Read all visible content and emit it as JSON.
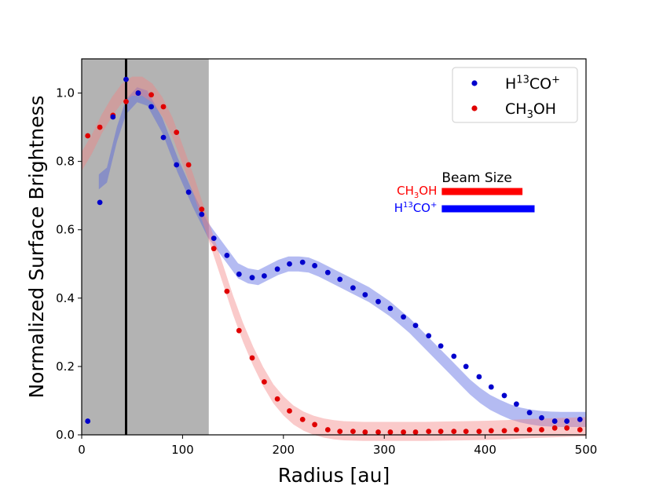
{
  "chart_data": {
    "type": "scatter",
    "title": "",
    "xlabel": "Radius [au]",
    "ylabel": "Normalized Surface Brightness",
    "xlim": [
      0,
      500
    ],
    "ylim": [
      0,
      1.1
    ],
    "xticks": [
      0,
      100,
      200,
      300,
      400,
      500
    ],
    "xtick_labels": [
      "0",
      "100",
      "200",
      "300",
      "400",
      "500"
    ],
    "yticks": [
      0.0,
      0.2,
      0.4,
      0.6,
      0.8,
      1.0
    ],
    "ytick_labels": [
      "0.0",
      "0.2",
      "0.4",
      "0.6",
      "0.8",
      "1.0"
    ],
    "shaded_region": {
      "x_start": 0,
      "x_end": 126,
      "color": "#b3b3b3"
    },
    "vertical_line": {
      "x": 44,
      "color": "#000000"
    },
    "legend": {
      "position": "top-right",
      "entries": [
        {
          "series": "H13CO+",
          "base": "H",
          "sup": "13",
          "mid": "CO",
          "sup2": "+"
        },
        {
          "series": "CH3OH",
          "base": "CH",
          "sub": "3",
          "mid": "OH"
        }
      ]
    },
    "beam": {
      "title": "Beam Size",
      "ch3oh_label": {
        "base": "CH",
        "sub": "3",
        "mid": "OH"
      },
      "h13co_label": {
        "base": "H",
        "sup": "13",
        "mid": "CO",
        "sup2": "+"
      },
      "ch3oh_x": [
        357,
        437
      ],
      "h13co_x": [
        357,
        449
      ],
      "ch3oh_y": 0.705,
      "h13co_y": 0.66
    },
    "series": [
      {
        "name": "H13CO+",
        "color": "#0000cc",
        "band_color": "#4d5ee0",
        "x": [
          6,
          18,
          31,
          44,
          56,
          69,
          81,
          94,
          106,
          119,
          131,
          144,
          156,
          169,
          181,
          194,
          206,
          219,
          231,
          244,
          256,
          269,
          281,
          294,
          306,
          319,
          331,
          344,
          356,
          369,
          381,
          394,
          406,
          419,
          431,
          444,
          456,
          469,
          481,
          494
        ],
        "y": [
          0.04,
          0.68,
          0.93,
          1.04,
          1.0,
          0.96,
          0.87,
          0.79,
          0.71,
          0.645,
          0.575,
          0.525,
          0.47,
          0.46,
          0.465,
          0.485,
          0.5,
          0.505,
          0.495,
          0.475,
          0.455,
          0.43,
          0.41,
          0.39,
          0.37,
          0.345,
          0.32,
          0.29,
          0.26,
          0.23,
          0.2,
          0.17,
          0.14,
          0.115,
          0.09,
          0.065,
          0.05,
          0.04,
          0.04,
          0.045
        ],
        "band_x": [
          17,
          25,
          35,
          44,
          55,
          65,
          80,
          95,
          110,
          125,
          135,
          145,
          155,
          165,
          175,
          185,
          195,
          205,
          215,
          225,
          235,
          245,
          255,
          265,
          275,
          285,
          295,
          305,
          315,
          325,
          335,
          345,
          355,
          365,
          375,
          385,
          395,
          405,
          415,
          425,
          435,
          445,
          455,
          465,
          475,
          485,
          500
        ],
        "band_y": [
          0.74,
          0.76,
          0.88,
          0.96,
          0.995,
          0.985,
          0.905,
          0.79,
          0.69,
          0.6,
          0.56,
          0.52,
          0.48,
          0.465,
          0.46,
          0.475,
          0.49,
          0.5,
          0.5,
          0.497,
          0.485,
          0.47,
          0.455,
          0.44,
          0.425,
          0.41,
          0.39,
          0.37,
          0.345,
          0.32,
          0.29,
          0.26,
          0.23,
          0.2,
          0.17,
          0.14,
          0.115,
          0.095,
          0.08,
          0.067,
          0.058,
          0.052,
          0.048,
          0.046,
          0.045,
          0.045,
          0.045
        ],
        "band_halfwidth": 0.022
      },
      {
        "name": "CH3OH",
        "color": "#e00000",
        "band_color": "#f28080",
        "x": [
          6,
          18,
          31,
          44,
          56,
          69,
          81,
          94,
          106,
          119,
          131,
          144,
          156,
          169,
          181,
          194,
          206,
          219,
          231,
          244,
          256,
          269,
          281,
          294,
          306,
          319,
          331,
          344,
          356,
          369,
          381,
          394,
          406,
          419,
          431,
          444,
          456,
          469,
          481,
          494
        ],
        "y": [
          0.875,
          0.9,
          0.935,
          0.975,
          1.0,
          0.995,
          0.96,
          0.885,
          0.79,
          0.66,
          0.545,
          0.42,
          0.305,
          0.225,
          0.155,
          0.105,
          0.07,
          0.045,
          0.03,
          0.015,
          0.01,
          0.01,
          0.008,
          0.008,
          0.008,
          0.008,
          0.008,
          0.01,
          0.01,
          0.01,
          0.01,
          0.01,
          0.012,
          0.012,
          0.015,
          0.015,
          0.015,
          0.02,
          0.02,
          0.015
        ],
        "band_x": [
          0,
          10,
          20,
          30,
          40,
          50,
          60,
          70,
          80,
          90,
          100,
          110,
          120,
          130,
          140,
          150,
          160,
          170,
          180,
          190,
          200,
          210,
          220,
          230,
          240,
          250,
          260,
          280,
          300,
          320,
          340,
          360,
          380,
          400,
          420,
          440,
          460,
          480,
          500
        ],
        "band_y": [
          0.8,
          0.85,
          0.91,
          0.96,
          1.0,
          1.02,
          1.02,
          1.0,
          0.96,
          0.9,
          0.82,
          0.74,
          0.65,
          0.56,
          0.47,
          0.38,
          0.3,
          0.23,
          0.17,
          0.12,
          0.085,
          0.058,
          0.04,
          0.028,
          0.02,
          0.015,
          0.012,
          0.01,
          0.01,
          0.01,
          0.01,
          0.011,
          0.012,
          0.013,
          0.015,
          0.018,
          0.02,
          0.022,
          0.024
        ],
        "band_halfwidth": 0.028
      }
    ]
  }
}
